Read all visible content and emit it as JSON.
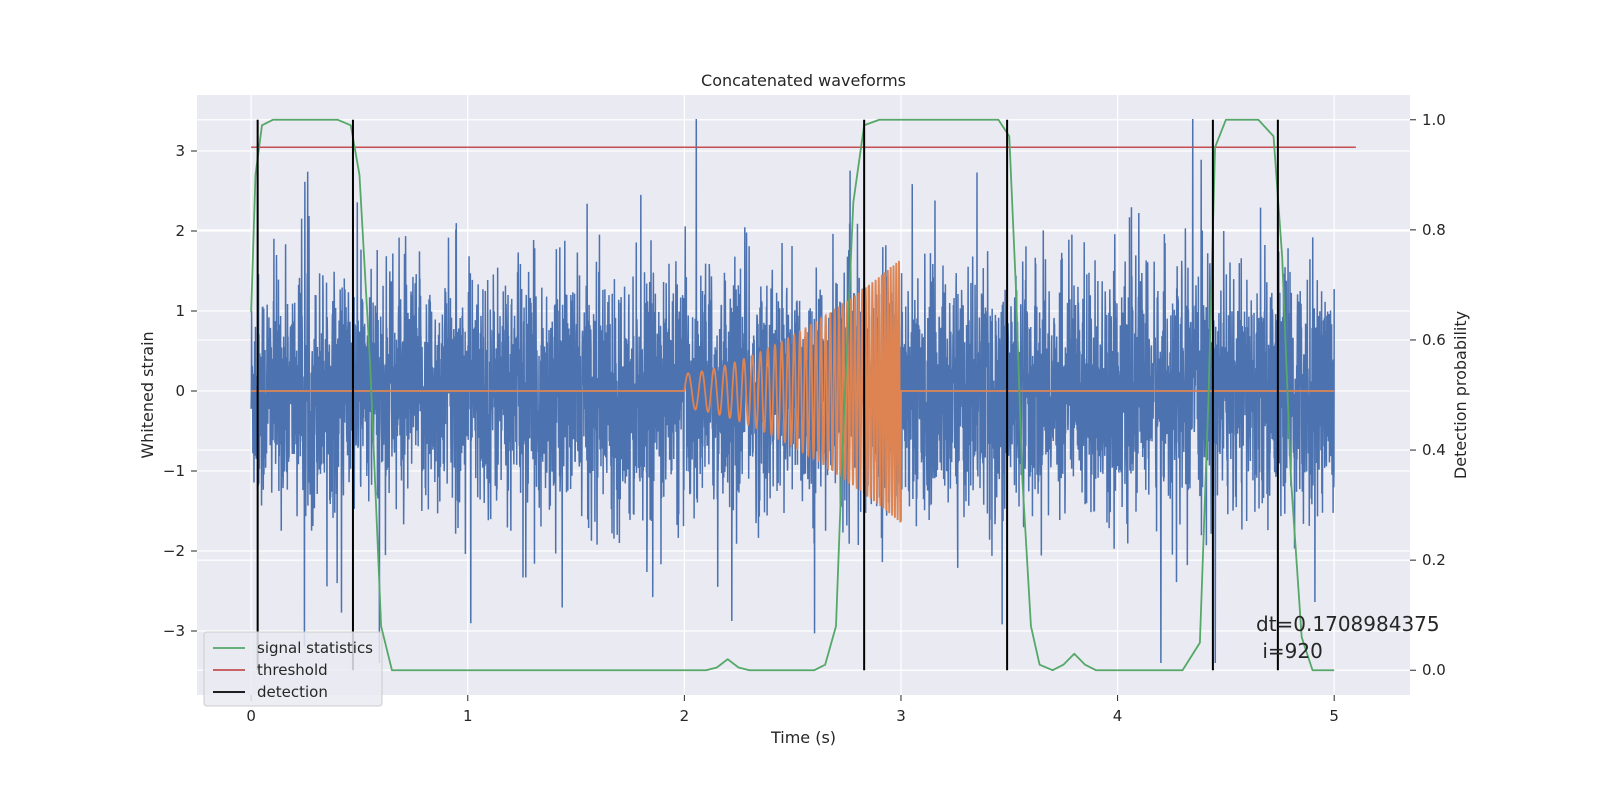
{
  "chart_data": {
    "type": "line",
    "title": "Concatenated waveforms",
    "xlabel": "Time (s)",
    "ylabel": "Whitened strain",
    "y2label": "Detection probability",
    "xlim": [
      -0.25,
      5.35
    ],
    "ylim": [
      -3.8,
      3.7
    ],
    "y2lim": [
      -0.045,
      1.045
    ],
    "x_ticks": [
      0,
      1,
      2,
      3,
      4,
      5
    ],
    "y_ticks": [
      -3,
      -2,
      -1,
      0,
      1,
      2,
      3
    ],
    "y2_ticks": [
      0.0,
      0.2,
      0.4,
      0.6,
      0.8,
      1.0
    ],
    "y2_tick_labels": [
      "0.0",
      "0.2",
      "0.4",
      "0.6",
      "0.8",
      "1.0"
    ],
    "grid": true,
    "legend_position": "lower-left",
    "colors": {
      "strain": "#4c72b0",
      "chirp": "#dd8452",
      "statistics": "#55a868",
      "threshold": "#c44e52",
      "detection": "#000000",
      "plot_bg": "#eaeaf2",
      "grid": "#ffffff"
    },
    "series": [
      {
        "name": "",
        "kind": "noise",
        "x_range": [
          0,
          5
        ],
        "amplitude_envelope": 3.4
      },
      {
        "name": "",
        "kind": "chirp",
        "x_range": [
          2,
          3
        ],
        "peak_amplitude": 1.65
      },
      {
        "name": "signal statistics",
        "axis": "right",
        "x": [
          0.0,
          0.02,
          0.05,
          0.1,
          0.4,
          0.46,
          0.5,
          0.55,
          0.6,
          0.65,
          2.1,
          2.15,
          2.2,
          2.25,
          2.3,
          2.6,
          2.65,
          2.7,
          2.73,
          2.78,
          2.83,
          2.9,
          3.45,
          3.5,
          3.53,
          3.56,
          3.6,
          3.64,
          3.7,
          3.75,
          3.8,
          3.85,
          3.9,
          4.3,
          4.38,
          4.42,
          4.45,
          4.5,
          4.65,
          4.72,
          4.76,
          4.8,
          4.85,
          4.9,
          5.0
        ],
        "y": [
          0.65,
          0.9,
          0.99,
          1.0,
          1.0,
          0.99,
          0.9,
          0.55,
          0.08,
          0.0,
          0.0,
          0.005,
          0.02,
          0.005,
          0.0,
          0.0,
          0.01,
          0.08,
          0.4,
          0.85,
          0.99,
          1.0,
          1.0,
          0.97,
          0.7,
          0.35,
          0.08,
          0.01,
          0.0,
          0.01,
          0.03,
          0.01,
          0.0,
          0.0,
          0.05,
          0.5,
          0.95,
          1.0,
          1.0,
          0.97,
          0.75,
          0.35,
          0.06,
          0.0,
          0.0
        ]
      },
      {
        "name": "threshold",
        "axis": "right",
        "x": [
          0,
          5.1
        ],
        "y": [
          0.95,
          0.95
        ]
      },
      {
        "name": "detection",
        "kind": "vertical",
        "axis": "right",
        "x": [
          0.03,
          0.47,
          2.83,
          3.49,
          4.44,
          4.74
        ],
        "y_range": [
          0.0,
          1.0
        ]
      }
    ],
    "annotations": [
      "dt=0.1708984375",
      " i=920"
    ]
  }
}
